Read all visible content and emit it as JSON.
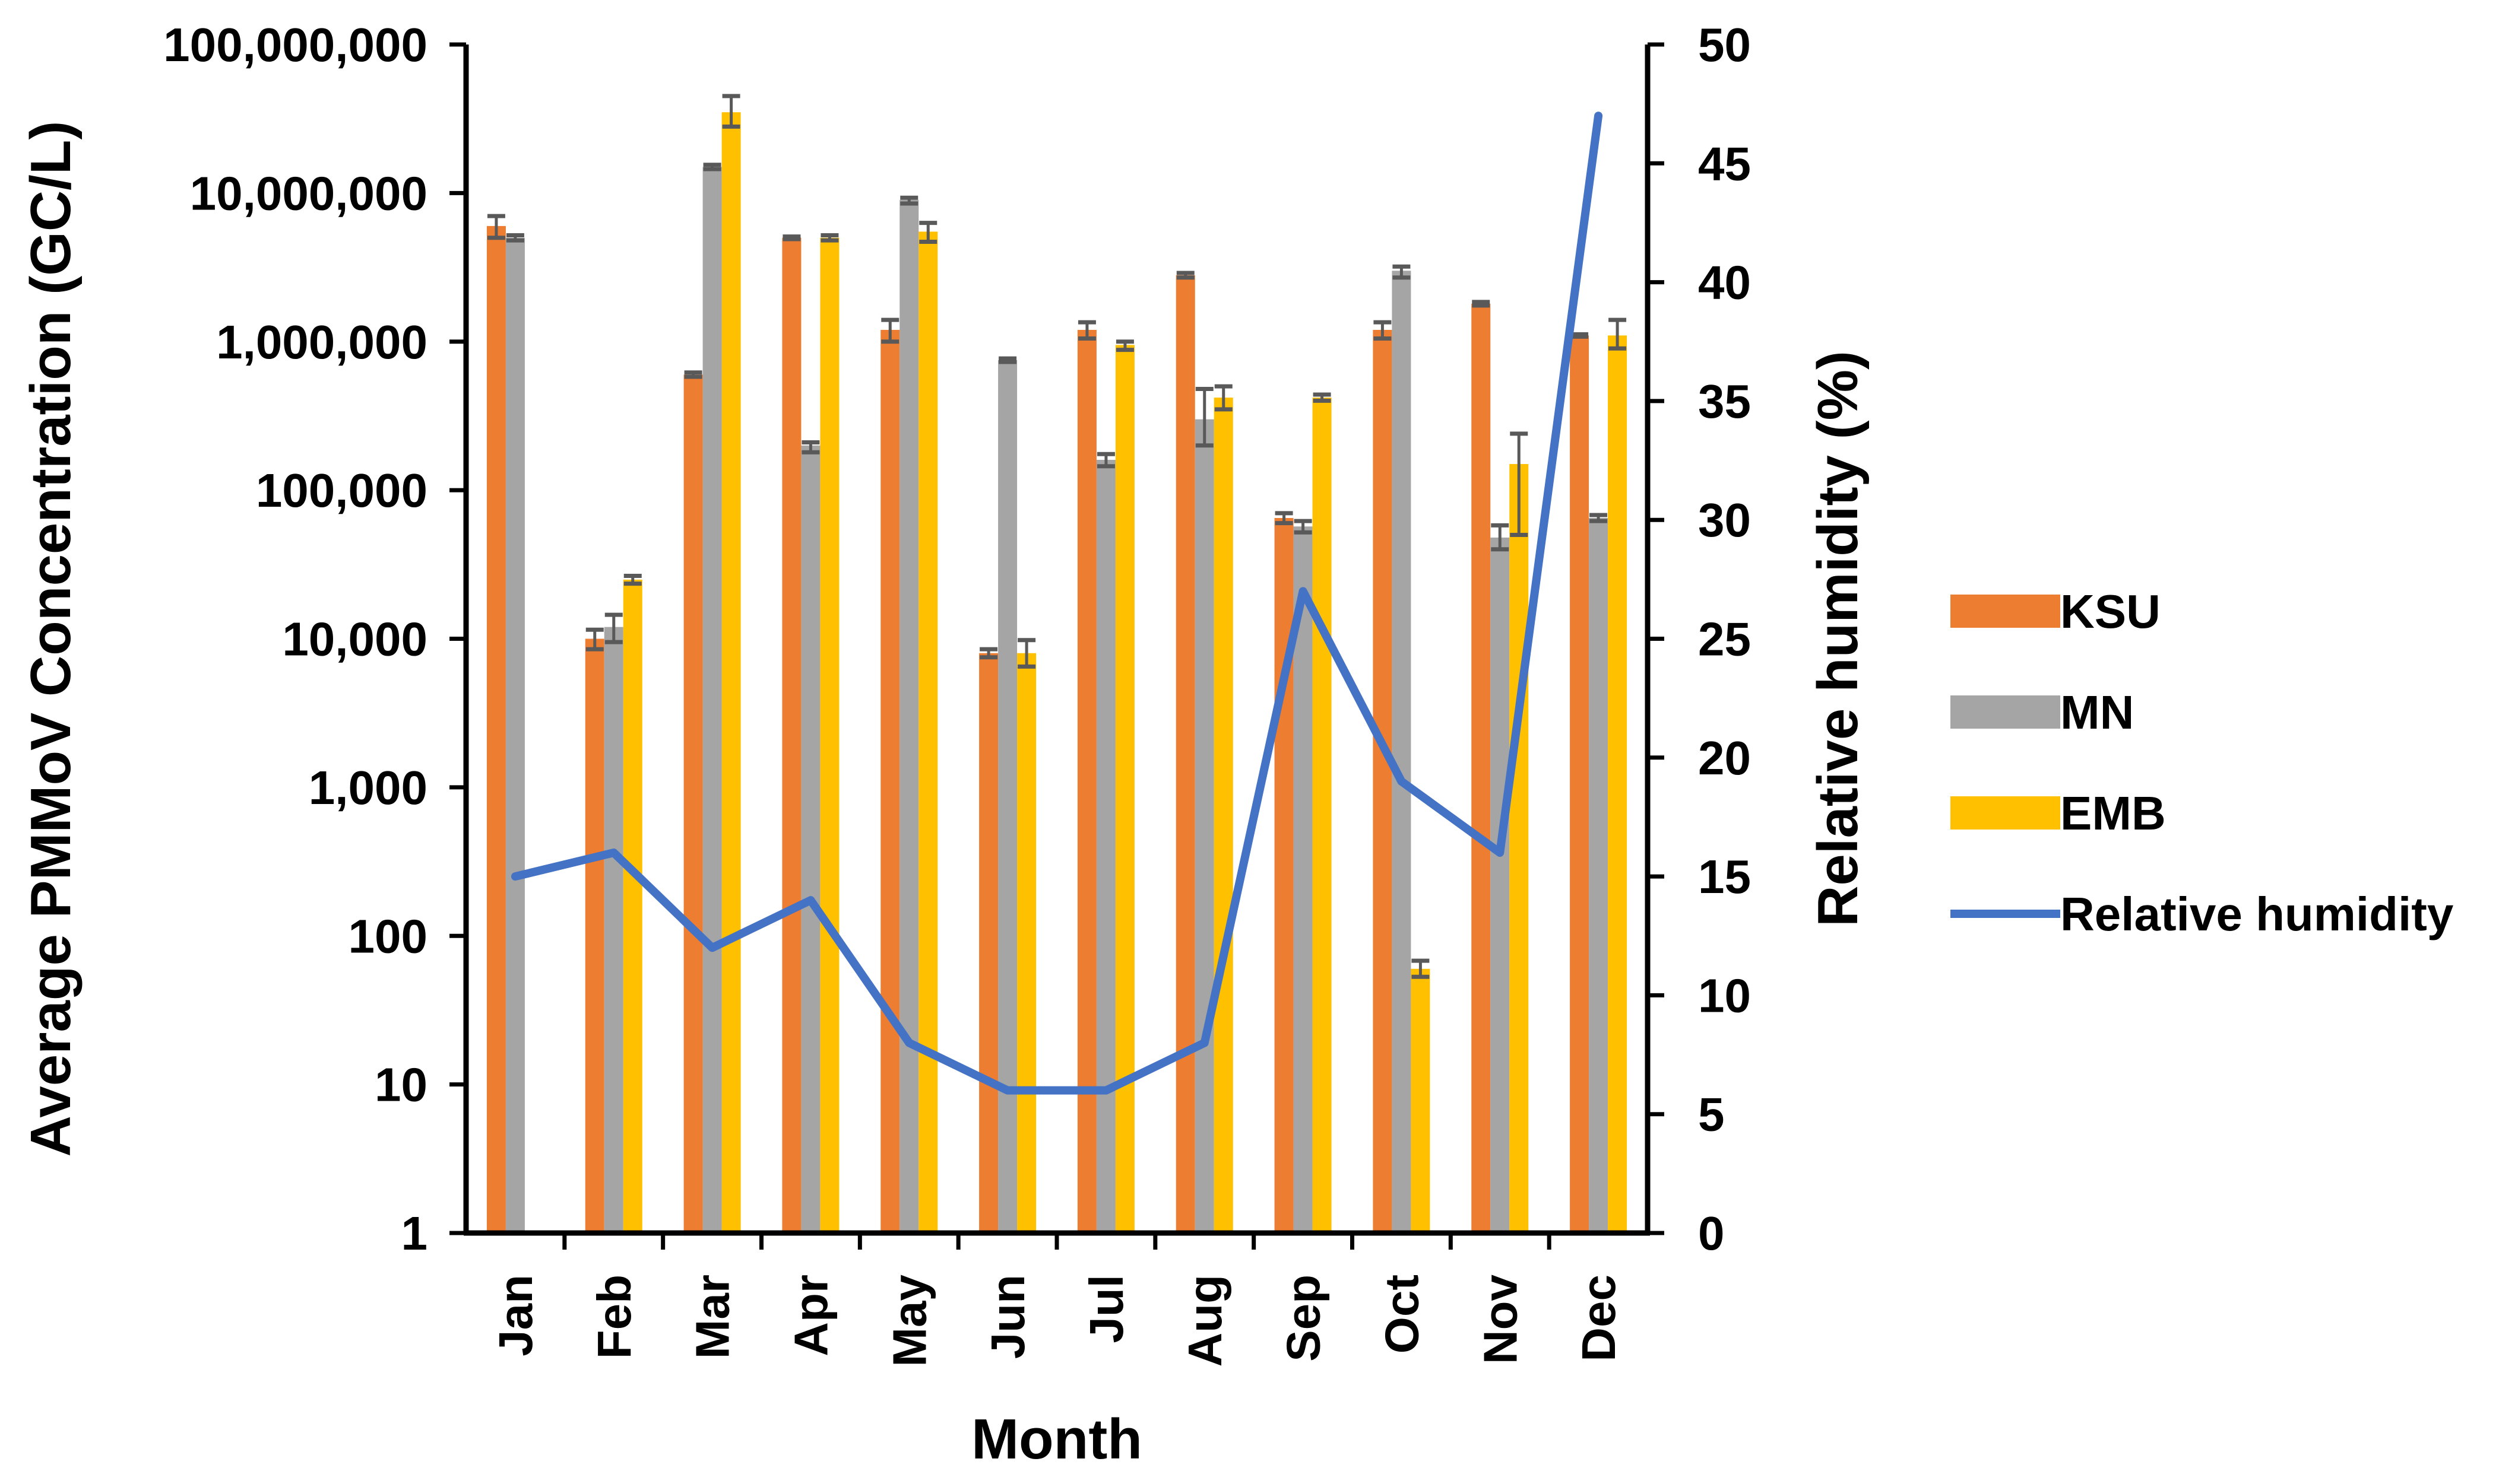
{
  "chart_data": {
    "type": "bar",
    "xlabel": "Month",
    "ylabel": "Average PMMoV Concentration (GC/L)",
    "y2label": "Relative humidity (%)",
    "y_scale": "log",
    "ylim": [
      1,
      100000000
    ],
    "y2lim": [
      0,
      50
    ],
    "categories": [
      "Jan",
      "Feb",
      "Mar",
      "Apr",
      "May",
      "Jun",
      "Jul",
      "Aug",
      "Sep",
      "Oct",
      "Nov",
      "Dec"
    ],
    "y_ticks": [
      "1",
      "10",
      "100",
      "1,000",
      "10,000",
      "100,000",
      "1,000,000",
      "10,000,000",
      "100,000,000"
    ],
    "y2_ticks": [
      "0",
      "5",
      "10",
      "15",
      "20",
      "25",
      "30",
      "35",
      "40",
      "45",
      "50"
    ],
    "series": [
      {
        "name": "KSU",
        "color": "#ED7D31",
        "values": [
          6000000,
          10000,
          600000,
          5000000,
          1200000,
          8000,
          1200000,
          2800000,
          65000,
          1200000,
          1800000,
          1100000
        ],
        "err_low": [
          5000000,
          8500,
          580000,
          4900000,
          1000000,
          7500,
          1050000,
          2700000,
          60000,
          1050000,
          1750000,
          1080000
        ],
        "err_high": [
          7000000,
          11500,
          620000,
          5100000,
          1400000,
          8500,
          1350000,
          2900000,
          70000,
          1350000,
          1850000,
          1120000
        ]
      },
      {
        "name": "MN",
        "color": "#A5A5A5",
        "values": [
          5000000,
          12000,
          15000000,
          200000,
          9000000,
          750000,
          160000,
          300000,
          57000,
          3000000,
          48000,
          65000
        ],
        "err_low": [
          4800000,
          9500,
          14500000,
          180000,
          8500000,
          730000,
          145000,
          200000,
          52000,
          2700000,
          40000,
          62000
        ],
        "err_high": [
          5200000,
          14500,
          15500000,
          210000,
          9300000,
          770000,
          175000,
          480000,
          62000,
          3200000,
          58000,
          68000
        ]
      },
      {
        "name": "EMB",
        "color": "#FFC000",
        "values": [
          null,
          25000,
          35000000,
          5000000,
          5500000,
          8000,
          950000,
          420000,
          420000,
          60,
          150000,
          1100000
        ],
        "err_low": [
          null,
          23500,
          28000000,
          4800000,
          4700000,
          6500,
          880000,
          350000,
          400000,
          53,
          50000,
          900000
        ],
        "err_high": [
          null,
          26500,
          45000000,
          5200000,
          6300000,
          9800,
          1000000,
          500000,
          440000,
          68,
          240000,
          1400000
        ]
      }
    ],
    "line": {
      "name": "Relative humidity",
      "color": "#4472C4",
      "axis": "right",
      "values": [
        15,
        16,
        12,
        14,
        8,
        6,
        6,
        8,
        27,
        19,
        16,
        47
      ]
    },
    "legend_position": "right",
    "grid": false
  }
}
